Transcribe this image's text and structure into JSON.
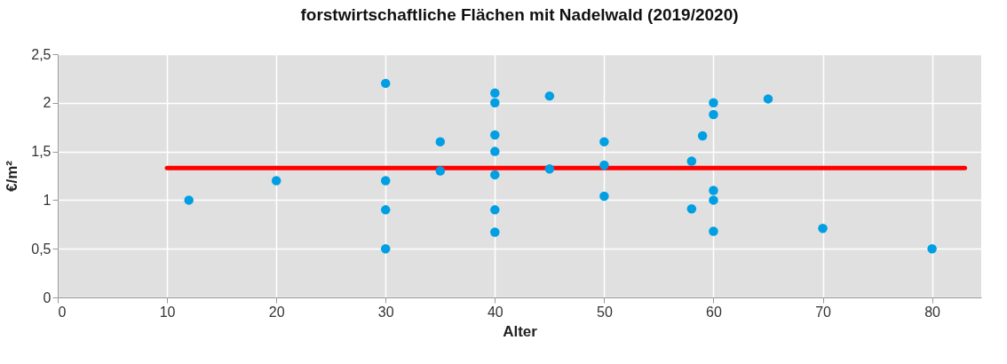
{
  "chart_data": {
    "type": "scatter",
    "title": "forstwirtschaftliche Flächen mit Nadelwald (2019/2020)",
    "xlabel": "Alter",
    "ylabel": "€/m²",
    "xlim": [
      0,
      84.5
    ],
    "xticks": [
      0,
      10,
      20,
      30,
      40,
      50,
      60,
      70,
      80
    ],
    "ylim": [
      0,
      2.5
    ],
    "yticks": [
      {
        "value": 0,
        "label": "0"
      },
      {
        "value": 0.5,
        "label": "0,5"
      },
      {
        "value": 1,
        "label": "1"
      },
      {
        "value": 1.5,
        "label": "1,5"
      },
      {
        "value": 2,
        "label": "2"
      },
      {
        "value": 2.5,
        "label": "2,5"
      }
    ],
    "grid": true,
    "series": [
      {
        "marker": "circle",
        "color": "#009fe3",
        "x": [
          12,
          20,
          30,
          30,
          30,
          30,
          35,
          35,
          40,
          40,
          40,
          40,
          40,
          40,
          40,
          45,
          45,
          50,
          50,
          50,
          58,
          58,
          59,
          60,
          60,
          60,
          60,
          60,
          65,
          70,
          80
        ],
        "values": [
          1.0,
          1.2,
          2.2,
          1.2,
          0.9,
          0.5,
          1.6,
          1.3,
          2.1,
          2.0,
          1.67,
          1.5,
          1.26,
          0.9,
          0.67,
          2.07,
          1.32,
          1.6,
          1.36,
          1.04,
          1.4,
          0.91,
          1.66,
          2.0,
          1.88,
          1.1,
          1.0,
          0.68,
          2.04,
          0.71,
          0.5
        ]
      },
      {
        "type": "line",
        "color": "#ff0000",
        "x": [
          10,
          83
        ],
        "values": [
          1.33,
          1.33
        ]
      }
    ]
  }
}
